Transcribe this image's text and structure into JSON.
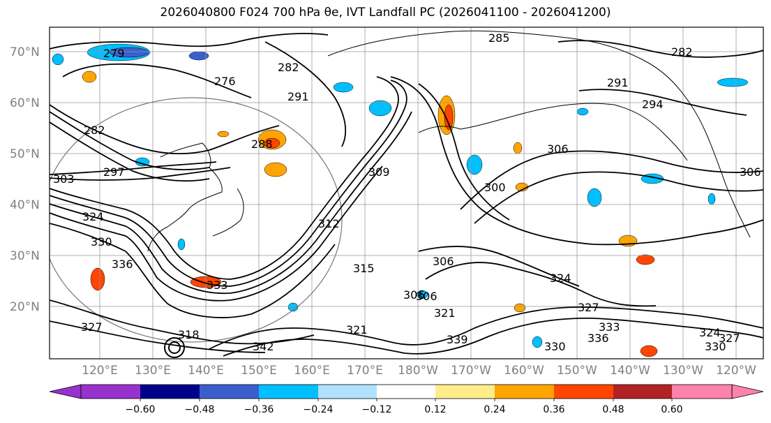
{
  "title": "2026040800 F024 700 hPa θe, IVT Landfall PC (2026041100 - 2026041200)",
  "latitude_labels": [
    "70°N",
    "60°N",
    "50°N",
    "40°N",
    "30°N",
    "20°N"
  ],
  "longitude_labels": [
    "120°E",
    "130°E",
    "140°E",
    "150°E",
    "160°E",
    "170°E",
    "180°W",
    "170°W",
    "160°W",
    "150°W",
    "140°W",
    "130°W",
    "120°W"
  ],
  "colorbar": {
    "ticks": [
      "−0.60",
      "−0.48",
      "−0.36",
      "−0.24",
      "−0.12",
      "0.12",
      "0.24",
      "0.36",
      "0.48",
      "0.60"
    ],
    "colors": [
      "#9932cc",
      "#00008b",
      "#3a5fcd",
      "#00bfff",
      "#b0e2ff",
      "#ffffff",
      "#ffec8b",
      "#ffa500",
      "#ff4500",
      "#b22222",
      "#ff82ab"
    ]
  },
  "contour_labels": [
    "279",
    "276",
    "282",
    "285",
    "282",
    "291",
    "291",
    "294",
    "288",
    "282",
    "297",
    "303",
    "306",
    "309",
    "306",
    "300",
    "312",
    "315",
    "318",
    "321",
    "324",
    "327",
    "330",
    "333",
    "336",
    "339",
    "342",
    "306",
    "306",
    "321",
    "324",
    "327",
    "330",
    "333",
    "336",
    "324",
    "330",
    "327",
    "306"
  ]
}
